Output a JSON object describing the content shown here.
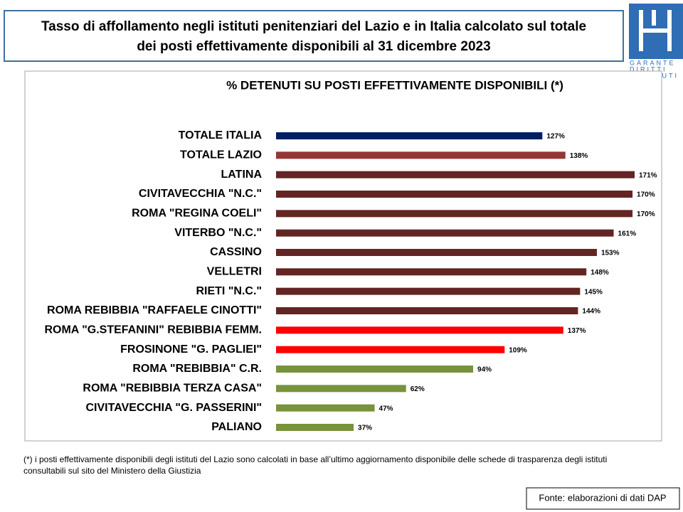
{
  "header": {
    "title_lines": [
      "Tasso di affollamento negli istituti penitenziari del Lazio e in Italia calcolato sul totale",
      "dei posti effettivamente disponibili al 31 dicembre 2023"
    ]
  },
  "logo": {
    "lines": [
      "GARANTE",
      "DIRITTI",
      "DETENUTI"
    ]
  },
  "chart_data": {
    "type": "hbar",
    "title": "% DETENUTI SU POSTI EFFETTIVAMENTE DISPONIBILI (*)",
    "categories": [
      "TOTALE ITALIA ",
      "TOTALE LAZIO",
      "LATINA",
      "CIVITAVECCHIA \"N.C.\"",
      "ROMA \"REGINA COELI\"",
      "VITERBO \"N.C.\"",
      "CASSINO",
      "VELLETRI",
      "RIETI \"N.C.\"",
      "ROMA REBIBBIA \"RAFFAELE CINOTTI\" ",
      "ROMA \"G.STEFANINI\" REBIBBIA FEMM.",
      "FROSINONE \"G. PAGLIEI\"",
      "ROMA \"REBIBBIA\" C.R.",
      "ROMA \"REBIBBIA TERZA CASA\"",
      "CIVITAVECCHIA \"G. PASSERINI\"",
      "PALIANO"
    ],
    "values": [
      127,
      138,
      171,
      170,
      170,
      161,
      153,
      148,
      145,
      144,
      137,
      109,
      94,
      62,
      47,
      37
    ],
    "value_labels": [
      "127%",
      "138%",
      "171%",
      "170%",
      "170%",
      "161%",
      "153%",
      "148%",
      "145%",
      "144%",
      "137%",
      "109%",
      "94%",
      "62%",
      "47%",
      "37%"
    ],
    "colors": [
      "#002060",
      "#953735",
      "#632523",
      "#632523",
      "#632523",
      "#632523",
      "#632523",
      "#632523",
      "#632523",
      "#632523",
      "#ff0000",
      "#ff0000",
      "#77933c",
      "#77933c",
      "#77933c",
      "#77933c"
    ]
  },
  "footnote_lines": [
    "(*) i posti effettivamente disponibili  degli istituti del Lazio sono  calcolati in base all’ultimo aggiornamento disponibile  delle schede  di trasparenza degli istituti",
    "consultabili sul sito del Ministero della Giustizia"
  ],
  "source": "Fonte: elaborazioni di dati DAP"
}
